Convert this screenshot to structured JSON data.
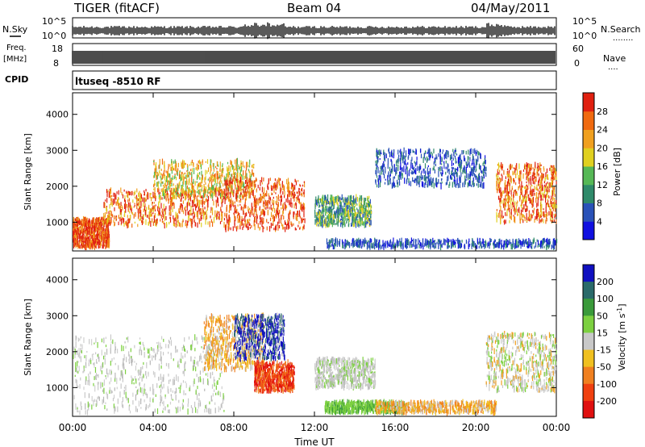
{
  "header": {
    "station": "TIGER (fitACF)",
    "beam": "Beam 04",
    "date": "04/May/2011"
  },
  "strip_labels": {
    "nsky": "N.Sky",
    "nsearch": "N.Search",
    "nsearch_dots": "........",
    "freq_line1": "Freq.",
    "freq_line2": "[MHz]",
    "nave": "Nave",
    "nave_dots": "....",
    "cpid": "CPID",
    "cpid_text": "ltuseq -8510 RF"
  },
  "noise_ticks": {
    "left_top": "10^5",
    "left_bottom": "10^0",
    "right_top": "10^5",
    "right_bottom": "10^0"
  },
  "freq_ticks": [
    "18",
    "8"
  ],
  "nave_ticks": [
    "60",
    "0"
  ],
  "chart_data": [
    {
      "type": "heatmap",
      "panel": "power",
      "ylabel": "Slant Range [km]",
      "xlabel": "",
      "x_ticks": [
        "00:00",
        "04:00",
        "08:00",
        "12:00",
        "16:00",
        "20:00",
        "00:00"
      ],
      "y_ticks": [
        1000,
        2000,
        3000,
        4000
      ],
      "ylim": [
        200,
        4600
      ],
      "xlim_hours": [
        0,
        24
      ],
      "colorbar": {
        "label": "Power [dB]",
        "ticks": [
          "4",
          "8",
          "12",
          "16",
          "20",
          "24",
          "28"
        ],
        "colors": [
          "#1010e0",
          "#2a52b8",
          "#2f8a6a",
          "#56b856",
          "#e0d020",
          "#f0a020",
          "#f06a10",
          "#e02010"
        ]
      },
      "scatter_regions": [
        {
          "hours": [
            0.0,
            1.8
          ],
          "range_km": [
            300,
            1100
          ],
          "dominant": "high power red"
        },
        {
          "hours": [
            1.5,
            7.5
          ],
          "range_km": [
            900,
            1900
          ],
          "dominant": "orange-red"
        },
        {
          "hours": [
            4.0,
            9.0
          ],
          "range_km": [
            1700,
            2700
          ],
          "dominant": "yellow-orange"
        },
        {
          "hours": [
            7.5,
            11.5
          ],
          "range_km": [
            800,
            2200
          ],
          "dominant": "red"
        },
        {
          "hours": [
            12.0,
            14.8
          ],
          "range_km": [
            900,
            1700
          ],
          "dominant": "green-blue"
        },
        {
          "hours": [
            12.5,
            24.0
          ],
          "range_km": [
            300,
            500
          ],
          "dominant": "blue"
        },
        {
          "hours": [
            15.0,
            20.5
          ],
          "range_km": [
            2000,
            3000
          ],
          "dominant": "blue"
        },
        {
          "hours": [
            21.0,
            24.0
          ],
          "range_km": [
            1000,
            2600
          ],
          "dominant": "orange-red"
        }
      ]
    },
    {
      "type": "heatmap",
      "panel": "velocity",
      "ylabel": "Slant Range [km]",
      "xlabel": "Time UT",
      "x_ticks": [
        "00:00",
        "04:00",
        "08:00",
        "12:00",
        "16:00",
        "20:00",
        "00:00"
      ],
      "y_ticks": [
        1000,
        2000,
        3000,
        4000
      ],
      "ylim": [
        200,
        4600
      ],
      "xlim_hours": [
        0,
        24
      ],
      "colorbar": {
        "label": "Velocity [m s^-1]",
        "ticks": [
          "200",
          "100",
          "50",
          "15",
          "-15",
          "-50",
          "-100",
          "-200"
        ],
        "colors": [
          "#1010c0",
          "#2a6a6a",
          "#3a9a3a",
          "#7cd040",
          "#c8c8c8",
          "#f0c020",
          "#f08020",
          "#f04010",
          "#e01010"
        ]
      },
      "scatter_regions": [
        {
          "hours": [
            0.0,
            7.5
          ],
          "range_km": [
            300,
            2400
          ],
          "dominant": "grey"
        },
        {
          "hours": [
            6.5,
            9.5
          ],
          "range_km": [
            1500,
            3000
          ],
          "dominant": "orange"
        },
        {
          "hours": [
            8.0,
            10.5
          ],
          "range_km": [
            1800,
            3000
          ],
          "dominant": "blue"
        },
        {
          "hours": [
            9.0,
            11.0
          ],
          "range_km": [
            900,
            1700
          ],
          "dominant": "red"
        },
        {
          "hours": [
            12.0,
            15.0
          ],
          "range_km": [
            1000,
            1800
          ],
          "dominant": "grey"
        },
        {
          "hours": [
            12.5,
            16.5
          ],
          "range_km": [
            300,
            600
          ],
          "dominant": "green"
        },
        {
          "hours": [
            15.0,
            21.0
          ],
          "range_km": [
            300,
            600
          ],
          "dominant": "orange"
        },
        {
          "hours": [
            20.5,
            24.0
          ],
          "range_km": [
            900,
            2500
          ],
          "dominant": "grey-green"
        }
      ]
    }
  ]
}
